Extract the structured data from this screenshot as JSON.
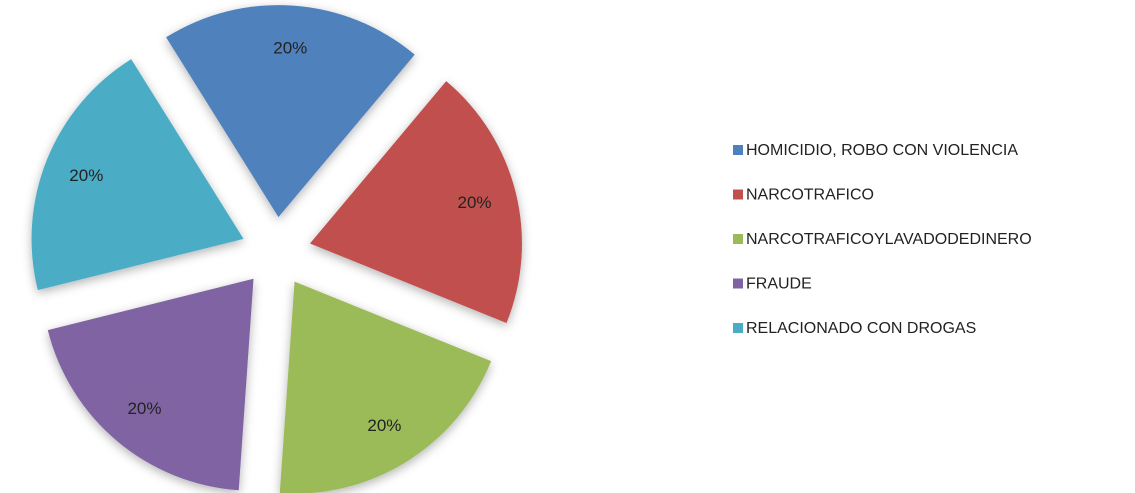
{
  "chart_data": {
    "type": "pie",
    "categories": [
      "HOMICIDIO, ROBO CON VIOLENCIA",
      "NARCOTRAFICO",
      "NARCOTRAFICOYLAVADODEDINERO",
      "FRAUDE",
      "RELACIONADO CON DROGAS"
    ],
    "values": [
      20,
      20,
      20,
      20,
      20
    ],
    "value_labels": [
      "20%",
      "20%",
      "20%",
      "20%",
      "20%"
    ],
    "colors": [
      "#4f81bd",
      "#c0504d",
      "#9bbb59",
      "#8064a2",
      "#4bacc6"
    ],
    "exploded": true,
    "legend": "right"
  }
}
